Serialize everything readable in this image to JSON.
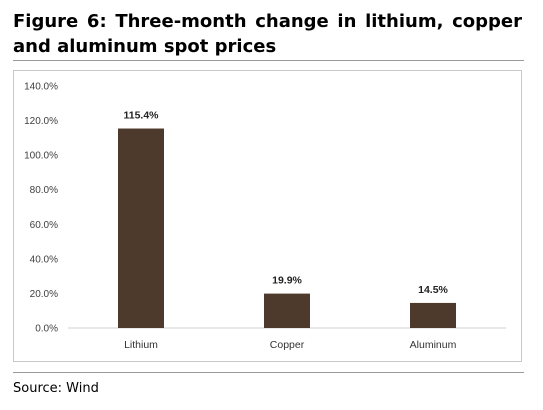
{
  "figure_title": "Figure 6: Three-month change in lithium, copper and aluminum spot prices",
  "source": "Source: Wind",
  "chart_data": {
    "type": "bar",
    "categories": [
      "Lithium",
      "Copper",
      "Aluminum"
    ],
    "values": [
      115.4,
      19.9,
      14.5
    ],
    "data_labels": [
      "115.4%",
      "19.9%",
      "14.5%"
    ],
    "y_ticks": [
      "0.0%",
      "20.0%",
      "40.0%",
      "60.0%",
      "80.0%",
      "100.0%",
      "120.0%",
      "140.0%"
    ],
    "ylim": [
      0,
      140
    ],
    "title": "",
    "xlabel": "",
    "ylabel": "",
    "grid": false,
    "legend": "none",
    "bar_color": "#4d3a2d"
  }
}
